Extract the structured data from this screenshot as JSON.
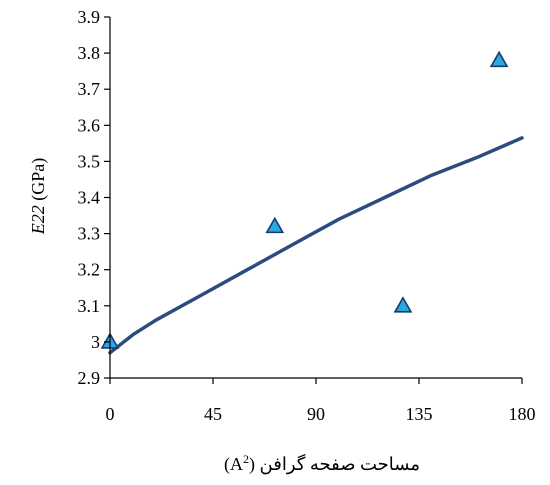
{
  "chart_data": {
    "type": "scatter",
    "xlabel_text": "مساحت صفحه گرافن (A",
    "xlabel_sup": "2",
    "xlabel_close": ")",
    "ylabel_italic": "E22",
    "ylabel_unit": "(GPa)",
    "xlim": [
      0,
      180
    ],
    "ylim": [
      2.9,
      3.9
    ],
    "x_ticks": [
      0,
      45,
      90,
      135,
      180
    ],
    "x_tick_labels": [
      "0",
      "45",
      "90",
      "135",
      "180"
    ],
    "y_ticks": [
      2.9,
      3.0,
      3.1,
      3.2,
      3.3,
      3.4,
      3.5,
      3.6,
      3.7,
      3.8,
      3.9
    ],
    "y_tick_labels": [
      "2.9",
      "3",
      "3.1",
      "3.2",
      "3.3",
      "3.4",
      "3.5",
      "3.6",
      "3.7",
      "3.8",
      "3.9"
    ],
    "grid": false,
    "legend": "none",
    "series": [
      {
        "type": "scatter",
        "marker": "triangle",
        "color": "#29a8e0",
        "edge_color": "#1a3a6b",
        "points": [
          {
            "x": 0,
            "y": 3.0
          },
          {
            "x": 72,
            "y": 3.32
          },
          {
            "x": 128,
            "y": 3.1
          },
          {
            "x": 170,
            "y": 3.78
          }
        ]
      },
      {
        "type": "line",
        "color": "#2b4c7e",
        "points": [
          {
            "x": 0,
            "y": 2.97
          },
          {
            "x": 10,
            "y": 3.02
          },
          {
            "x": 20,
            "y": 3.06
          },
          {
            "x": 40,
            "y": 3.13
          },
          {
            "x": 60,
            "y": 3.2
          },
          {
            "x": 80,
            "y": 3.27
          },
          {
            "x": 100,
            "y": 3.34
          },
          {
            "x": 120,
            "y": 3.4
          },
          {
            "x": 140,
            "y": 3.46
          },
          {
            "x": 160,
            "y": 3.51
          },
          {
            "x": 180,
            "y": 3.565
          }
        ]
      }
    ]
  }
}
